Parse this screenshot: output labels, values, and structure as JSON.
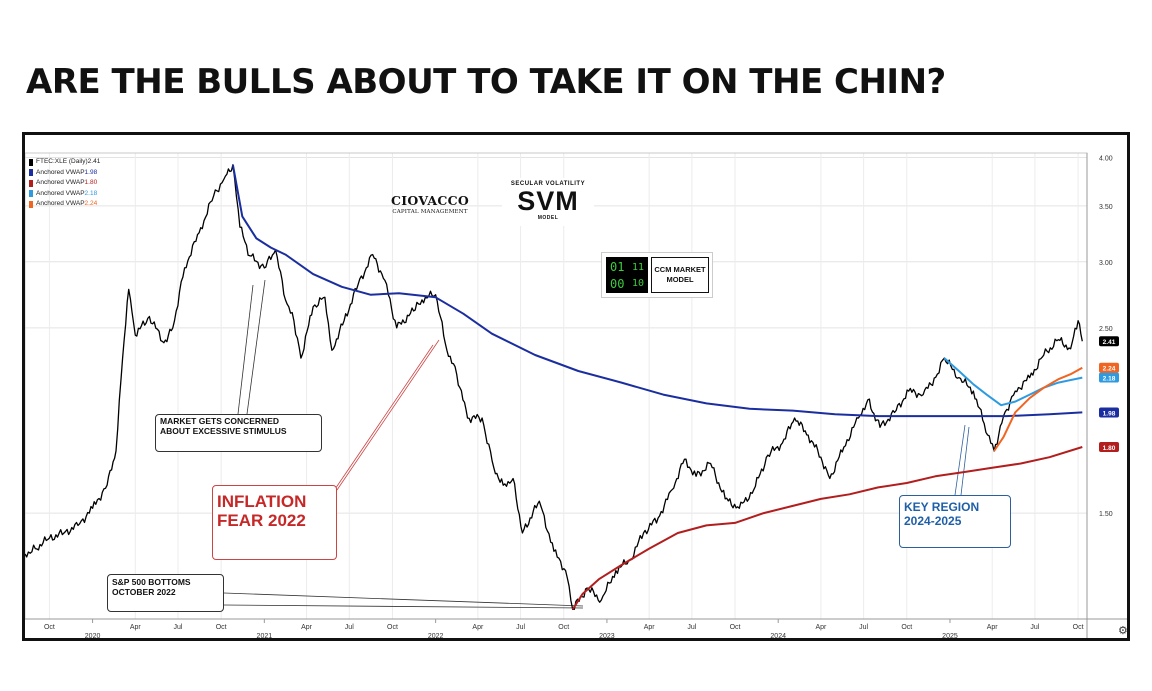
{
  "headline": "ARE THE BULLS ABOUT TO TAKE IT  ON THE CHIN?",
  "logos": {
    "ciovacco_name": "CIOVACCO",
    "ciovacco_sub": "CAPITAL MANAGEMENT",
    "svm_top": "SECULAR VOLATILITY",
    "svm_big": "SVM",
    "svm_bottom": "MODEL",
    "ccm_digits": [
      "01",
      "11",
      "00",
      "10"
    ],
    "ccm_line1": "CCM MARKET",
    "ccm_line2": "MODEL"
  },
  "annotations": {
    "stimulus_line1": "MARKET GETS CONCERNED",
    "stimulus_line2": "ABOUT EXCESSIVE STIMULUS",
    "sp_line1": "S&P 500 BOTTOMS",
    "sp_line2": "OCTOBER 2022",
    "inflation_line1": "INFLATION",
    "inflation_line2": "FEAR 2022",
    "key_line1": "KEY REGION",
    "key_line2": "2024-2025"
  },
  "chart_data": {
    "type": "line",
    "title": "",
    "xlabel": "",
    "ylabel": "",
    "y_scale": "log",
    "ylim": [
      1.12,
      4.05
    ],
    "xlim": [
      "2019-08-10",
      "2025-10-20"
    ],
    "y_ticks": [
      "4.00",
      "3.50",
      "3.00",
      "2.50",
      "1.50"
    ],
    "y_tick_values": [
      4.0,
      3.5,
      3.0,
      2.5,
      1.5
    ],
    "x_ticks": [
      {
        "label": "Oct",
        "date": "2019-10-01"
      },
      {
        "label": "Apr",
        "date": "2020-04-01"
      },
      {
        "label": "Jul",
        "date": "2020-07-01"
      },
      {
        "label": "Oct",
        "date": "2020-10-01"
      },
      {
        "label": "Apr",
        "date": "2021-04-01"
      },
      {
        "label": "Jul",
        "date": "2021-07-01"
      },
      {
        "label": "Oct",
        "date": "2021-10-01"
      },
      {
        "label": "Apr",
        "date": "2022-04-01"
      },
      {
        "label": "Jul",
        "date": "2022-07-01"
      },
      {
        "label": "Oct",
        "date": "2022-10-01"
      },
      {
        "label": "Apr",
        "date": "2023-04-01"
      },
      {
        "label": "Jul",
        "date": "2023-07-01"
      },
      {
        "label": "Oct",
        "date": "2023-10-01"
      },
      {
        "label": "Apr",
        "date": "2024-04-01"
      },
      {
        "label": "Jul",
        "date": "2024-07-01"
      },
      {
        "label": "Oct",
        "date": "2024-10-01"
      },
      {
        "label": "Apr",
        "date": "2025-04-01"
      },
      {
        "label": "Jul",
        "date": "2025-07-01"
      },
      {
        "label": "Oct",
        "date": "2025-10-01"
      }
    ],
    "year_labels": [
      {
        "label": "2020",
        "date": "2020-01-01"
      },
      {
        "label": "2021",
        "date": "2021-01-01"
      },
      {
        "label": "2022",
        "date": "2022-01-01"
      },
      {
        "label": "2023",
        "date": "2023-01-01"
      },
      {
        "label": "2024",
        "date": "2024-01-01"
      },
      {
        "label": "2025",
        "date": "2025-01-01"
      }
    ],
    "legend": [
      {
        "text": "FTEC:XLE (Daily) ",
        "value": "2.41",
        "color": "#000000"
      },
      {
        "text": "Anchored VWAP ",
        "value": "1.98",
        "color": "#1a2ea0"
      },
      {
        "text": "Anchored VWAP ",
        "value": "1.80",
        "color": "#b21d1d"
      },
      {
        "text": "Anchored VWAP ",
        "value": "2.18",
        "color": "#2e9be0"
      },
      {
        "text": "Anchored VWAP ",
        "value": "2.24",
        "color": "#f06522"
      }
    ],
    "legend_position": "top-left",
    "grid": true,
    "series": [
      {
        "name": "FTEC:XLE (Daily)",
        "color": "#000000",
        "last_value": "2.41",
        "points": [
          [
            "2019-08-10",
            1.34
          ],
          [
            "2019-09-01",
            1.36
          ],
          [
            "2019-10-01",
            1.4
          ],
          [
            "2019-11-01",
            1.42
          ],
          [
            "2019-12-01",
            1.45
          ],
          [
            "2020-01-01",
            1.52
          ],
          [
            "2020-02-01",
            1.62
          ],
          [
            "2020-02-20",
            1.78
          ],
          [
            "2020-03-05",
            2.3
          ],
          [
            "2020-03-18",
            2.78
          ],
          [
            "2020-04-01",
            2.45
          ],
          [
            "2020-05-01",
            2.58
          ],
          [
            "2020-06-01",
            2.4
          ],
          [
            "2020-06-20",
            2.5
          ],
          [
            "2020-07-15",
            2.95
          ],
          [
            "2020-08-15",
            3.25
          ],
          [
            "2020-09-15",
            3.6
          ],
          [
            "2020-10-10",
            3.8
          ],
          [
            "2020-10-26",
            3.92
          ],
          [
            "2020-11-10",
            3.3
          ],
          [
            "2020-12-01",
            3.05
          ],
          [
            "2021-01-01",
            2.95
          ],
          [
            "2021-01-25",
            3.1
          ],
          [
            "2021-02-15",
            2.7
          ],
          [
            "2021-03-05",
            2.55
          ],
          [
            "2021-03-20",
            2.3
          ],
          [
            "2021-04-15",
            2.65
          ],
          [
            "2021-05-10",
            2.72
          ],
          [
            "2021-05-25",
            2.35
          ],
          [
            "2021-06-20",
            2.55
          ],
          [
            "2021-07-20",
            2.82
          ],
          [
            "2021-08-20",
            3.06
          ],
          [
            "2021-09-15",
            2.85
          ],
          [
            "2021-10-10",
            2.5
          ],
          [
            "2021-11-15",
            2.62
          ],
          [
            "2021-12-10",
            2.72
          ],
          [
            "2022-01-01",
            2.74
          ],
          [
            "2022-01-25",
            2.35
          ],
          [
            "2022-02-15",
            2.2
          ],
          [
            "2022-03-10",
            1.95
          ],
          [
            "2022-04-10",
            1.95
          ],
          [
            "2022-05-05",
            1.7
          ],
          [
            "2022-05-25",
            1.62
          ],
          [
            "2022-06-15",
            1.65
          ],
          [
            "2022-07-05",
            1.42
          ],
          [
            "2022-08-10",
            1.55
          ],
          [
            "2022-09-10",
            1.35
          ],
          [
            "2022-10-05",
            1.28
          ],
          [
            "2022-10-20",
            1.15
          ],
          [
            "2022-11-20",
            1.22
          ],
          [
            "2022-12-20",
            1.18
          ],
          [
            "2023-01-20",
            1.28
          ],
          [
            "2023-02-20",
            1.32
          ],
          [
            "2023-03-20",
            1.42
          ],
          [
            "2023-04-20",
            1.48
          ],
          [
            "2023-05-20",
            1.6
          ],
          [
            "2023-06-15",
            1.74
          ],
          [
            "2023-07-10",
            1.66
          ],
          [
            "2023-08-10",
            1.72
          ],
          [
            "2023-09-10",
            1.56
          ],
          [
            "2023-10-10",
            1.52
          ],
          [
            "2023-11-10",
            1.6
          ],
          [
            "2023-12-10",
            1.76
          ],
          [
            "2024-01-10",
            1.82
          ],
          [
            "2024-02-05",
            1.95
          ],
          [
            "2024-03-05",
            1.86
          ],
          [
            "2024-04-01",
            1.75
          ],
          [
            "2024-04-20",
            1.65
          ],
          [
            "2024-05-20",
            1.8
          ],
          [
            "2024-06-20",
            1.95
          ],
          [
            "2024-07-10",
            2.05
          ],
          [
            "2024-08-05",
            1.9
          ],
          [
            "2024-09-05",
            1.98
          ],
          [
            "2024-10-05",
            2.1
          ],
          [
            "2024-11-05",
            2.08
          ],
          [
            "2024-12-05",
            2.2
          ],
          [
            "2024-12-20",
            2.3
          ],
          [
            "2025-01-20",
            2.18
          ],
          [
            "2025-02-20",
            2.1
          ],
          [
            "2025-03-15",
            1.92
          ],
          [
            "2025-04-05",
            1.78
          ],
          [
            "2025-04-25",
            1.96
          ],
          [
            "2025-05-20",
            2.1
          ],
          [
            "2025-06-20",
            2.18
          ],
          [
            "2025-07-20",
            2.32
          ],
          [
            "2025-08-20",
            2.42
          ],
          [
            "2025-09-15",
            2.36
          ],
          [
            "2025-10-01",
            2.55
          ],
          [
            "2025-10-10",
            2.41
          ]
        ]
      },
      {
        "name": "Anchored VWAP",
        "color": "#1a2ea0",
        "last_value": "1.98",
        "points": [
          [
            "2020-10-26",
            3.92
          ],
          [
            "2020-11-15",
            3.4
          ],
          [
            "2020-12-15",
            3.2
          ],
          [
            "2021-01-15",
            3.12
          ],
          [
            "2021-02-15",
            3.06
          ],
          [
            "2021-04-15",
            2.9
          ],
          [
            "2021-06-15",
            2.8
          ],
          [
            "2021-08-15",
            2.74
          ],
          [
            "2021-10-15",
            2.75
          ],
          [
            "2022-01-01",
            2.72
          ],
          [
            "2022-03-01",
            2.6
          ],
          [
            "2022-05-01",
            2.46
          ],
          [
            "2022-08-01",
            2.32
          ],
          [
            "2022-11-01",
            2.22
          ],
          [
            "2023-02-01",
            2.15
          ],
          [
            "2023-05-01",
            2.08
          ],
          [
            "2023-08-01",
            2.03
          ],
          [
            "2023-11-01",
            2.0
          ],
          [
            "2024-02-01",
            1.99
          ],
          [
            "2024-05-01",
            1.97
          ],
          [
            "2024-08-01",
            1.96
          ],
          [
            "2024-11-01",
            1.96
          ],
          [
            "2025-02-01",
            1.96
          ],
          [
            "2025-05-01",
            1.96
          ],
          [
            "2025-08-01",
            1.97
          ],
          [
            "2025-10-10",
            1.98
          ]
        ]
      },
      {
        "name": "Anchored VWAP",
        "color": "#b21d1d",
        "last_value": "1.80",
        "points": [
          [
            "2022-10-20",
            1.15
          ],
          [
            "2022-11-10",
            1.2
          ],
          [
            "2022-12-15",
            1.25
          ],
          [
            "2023-02-01",
            1.3
          ],
          [
            "2023-04-01",
            1.36
          ],
          [
            "2023-06-01",
            1.42
          ],
          [
            "2023-08-01",
            1.45
          ],
          [
            "2023-10-01",
            1.46
          ],
          [
            "2023-12-01",
            1.5
          ],
          [
            "2024-02-01",
            1.53
          ],
          [
            "2024-04-01",
            1.56
          ],
          [
            "2024-06-01",
            1.58
          ],
          [
            "2024-08-01",
            1.61
          ],
          [
            "2024-10-01",
            1.63
          ],
          [
            "2024-12-01",
            1.66
          ],
          [
            "2025-02-01",
            1.68
          ],
          [
            "2025-04-01",
            1.7
          ],
          [
            "2025-06-01",
            1.72
          ],
          [
            "2025-08-01",
            1.75
          ],
          [
            "2025-10-10",
            1.8
          ]
        ]
      },
      {
        "name": "Anchored VWAP",
        "color": "#2e9be0",
        "last_value": "2.18",
        "points": [
          [
            "2024-12-20",
            2.3
          ],
          [
            "2025-01-20",
            2.22
          ],
          [
            "2025-02-20",
            2.14
          ],
          [
            "2025-03-20",
            2.08
          ],
          [
            "2025-04-20",
            2.02
          ],
          [
            "2025-05-20",
            2.04
          ],
          [
            "2025-06-20",
            2.08
          ],
          [
            "2025-07-20",
            2.12
          ],
          [
            "2025-08-20",
            2.15
          ],
          [
            "2025-10-10",
            2.18
          ]
        ]
      },
      {
        "name": "Anchored VWAP",
        "color": "#f06522",
        "last_value": "2.24",
        "points": [
          [
            "2025-04-05",
            1.78
          ],
          [
            "2025-04-25",
            1.85
          ],
          [
            "2025-05-20",
            1.98
          ],
          [
            "2025-06-20",
            2.06
          ],
          [
            "2025-07-20",
            2.12
          ],
          [
            "2025-08-20",
            2.17
          ],
          [
            "2025-09-15",
            2.2
          ],
          [
            "2025-10-10",
            2.24
          ]
        ]
      }
    ]
  }
}
